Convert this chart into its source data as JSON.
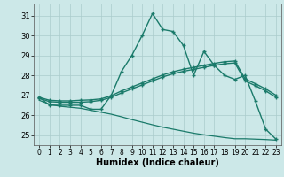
{
  "background_color": "#cce8e8",
  "grid_color": "#aacccc",
  "line_color": "#1a7a6a",
  "xlabel": "Humidex (Indice chaleur)",
  "xlim": [
    -0.5,
    23.5
  ],
  "ylim": [
    24.5,
    31.6
  ],
  "yticks": [
    25,
    26,
    27,
    28,
    29,
    30,
    31
  ],
  "xticks": [
    0,
    1,
    2,
    3,
    4,
    5,
    6,
    7,
    8,
    9,
    10,
    11,
    12,
    13,
    14,
    15,
    16,
    17,
    18,
    19,
    20,
    21,
    22,
    23
  ],
  "lines": [
    {
      "x": [
        0,
        1,
        2,
        3,
        4,
        5,
        6,
        7,
        8,
        9,
        10,
        11,
        12,
        13,
        14,
        15,
        16,
        17,
        18,
        19,
        20,
        21,
        22,
        23
      ],
      "y": [
        26.9,
        26.5,
        26.5,
        26.5,
        26.5,
        26.3,
        26.3,
        27.0,
        28.2,
        29.0,
        30.0,
        31.1,
        30.3,
        30.2,
        29.5,
        28.0,
        29.2,
        28.5,
        28.0,
        27.8,
        28.0,
        26.7,
        25.3,
        24.8
      ],
      "marker": true,
      "lw": 1.0
    },
    {
      "x": [
        0,
        1,
        2,
        3,
        4,
        5,
        6,
        7,
        8,
        9,
        10,
        11,
        12,
        13,
        14,
        15,
        16,
        17,
        18,
        19,
        20,
        21,
        22,
        23
      ],
      "y": [
        26.9,
        26.75,
        26.72,
        26.72,
        26.75,
        26.77,
        26.82,
        26.98,
        27.22,
        27.42,
        27.62,
        27.82,
        28.02,
        28.18,
        28.3,
        28.4,
        28.5,
        28.6,
        28.68,
        28.72,
        27.82,
        27.58,
        27.32,
        27.0
      ],
      "marker": true,
      "lw": 1.0
    },
    {
      "x": [
        0,
        1,
        2,
        3,
        4,
        5,
        6,
        7,
        8,
        9,
        10,
        11,
        12,
        13,
        14,
        15,
        16,
        17,
        18,
        19,
        20,
        21,
        22,
        23
      ],
      "y": [
        26.85,
        26.68,
        26.65,
        26.65,
        26.65,
        26.68,
        26.75,
        26.9,
        27.12,
        27.32,
        27.52,
        27.72,
        27.92,
        28.08,
        28.2,
        28.3,
        28.4,
        28.5,
        28.58,
        28.62,
        27.72,
        27.48,
        27.22,
        26.9
      ],
      "marker": true,
      "lw": 1.0
    },
    {
      "x": [
        0,
        1,
        2,
        3,
        4,
        5,
        6,
        7,
        8,
        9,
        10,
        11,
        12,
        13,
        14,
        15,
        16,
        17,
        18,
        19,
        20,
        21,
        22,
        23
      ],
      "y": [
        26.75,
        26.55,
        26.45,
        26.4,
        26.35,
        26.25,
        26.15,
        26.05,
        25.92,
        25.78,
        25.65,
        25.52,
        25.4,
        25.3,
        25.2,
        25.1,
        25.02,
        24.95,
        24.88,
        24.82,
        24.82,
        24.8,
        24.78,
        24.75
      ],
      "marker": false,
      "lw": 0.9
    }
  ]
}
